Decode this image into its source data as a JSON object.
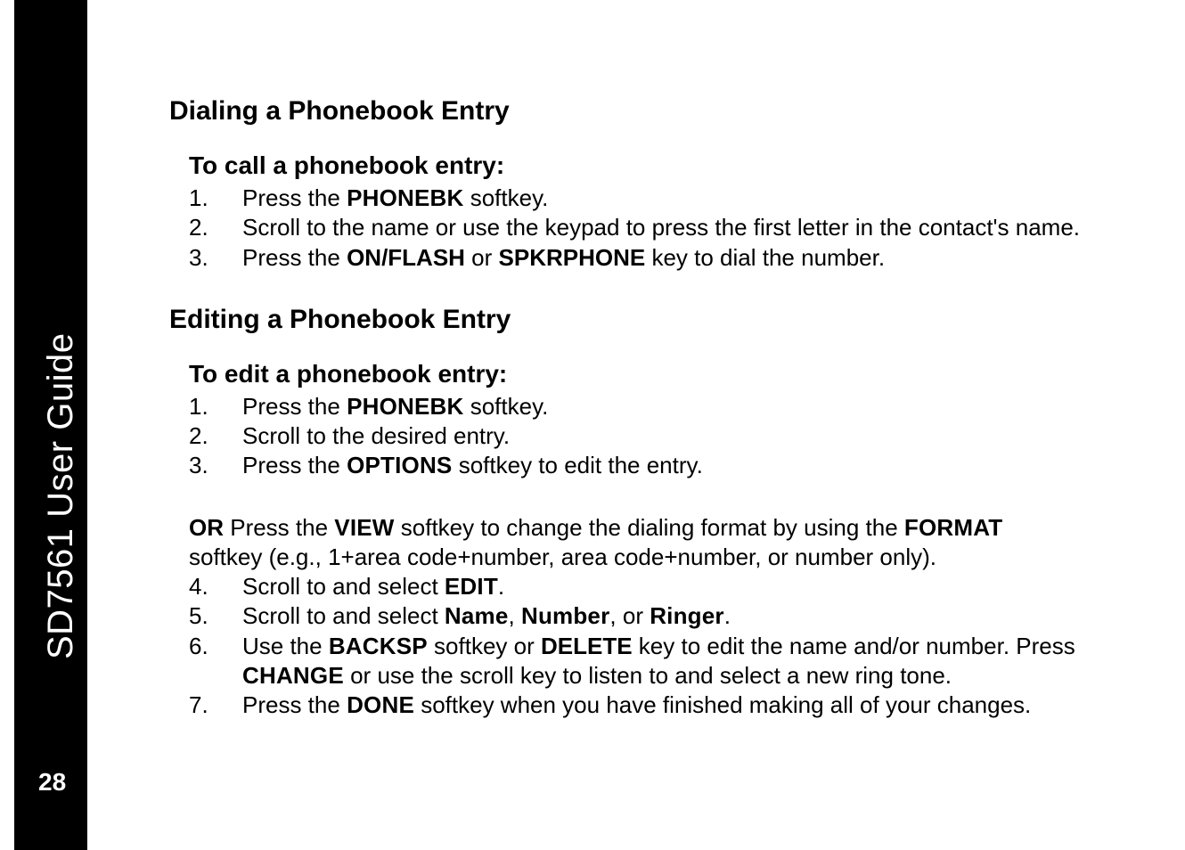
{
  "sidebar": {
    "title": "SD7561 User Guide",
    "page_number": "28"
  },
  "sections": [
    {
      "heading": "Dialing a Phonebook Entry",
      "subheading": "To call a phonebook entry:"
    },
    {
      "heading": "Editing a Phonebook Entry",
      "subheading": "To edit a phonebook entry:"
    }
  ],
  "s1": {
    "l1a": "Press the ",
    "l1b": "PHONEBK",
    "l1c": " softkey.",
    "l2": "Scroll to the name or use the keypad to press the first letter in the contact's name.",
    "l3a": "Press the ",
    "l3b": "ON/FLASH",
    "l3c": " or ",
    "l3d": "SPKRPHONE",
    "l3e": " key to dial the number."
  },
  "s2": {
    "l1a": "Press the ",
    "l1b": "PHONEBK",
    "l1c": " softkey.",
    "l2": "Scroll to the desired entry.",
    "l3a": "Press the ",
    "l3b": "OPTIONS",
    "l3c": " softkey to edit the entry.",
    "or1a": "OR",
    "or1b": "  Press the ",
    "or1c": "VIEW",
    "or1d": " softkey to change the dialing format by using the ",
    "or1e": "FORMAT",
    "or2": "softkey (e.g., 1+area code+number, area code+number, or number only).",
    "l4a": "Scroll to and select ",
    "l4b": "EDIT",
    "l4c": ".",
    "l5a": "Scroll to and select ",
    "l5b": "Name",
    "l5c": ", ",
    "l5d": "Number",
    "l5e": ", or ",
    "l5f": "Ringer",
    "l5g": ".",
    "l6a": "Use the ",
    "l6b": "BACKSP",
    "l6c": " softkey or ",
    "l6d": "DELETE",
    "l6e": " key to edit the name and/or number. Press ",
    "l6f": "CHANGE",
    "l6g": " or use the scroll key to listen to and select a new ring tone.",
    "l7a": "Press the ",
    "l7b": "DONE",
    "l7c": " softkey when you have finished making all of your changes."
  }
}
